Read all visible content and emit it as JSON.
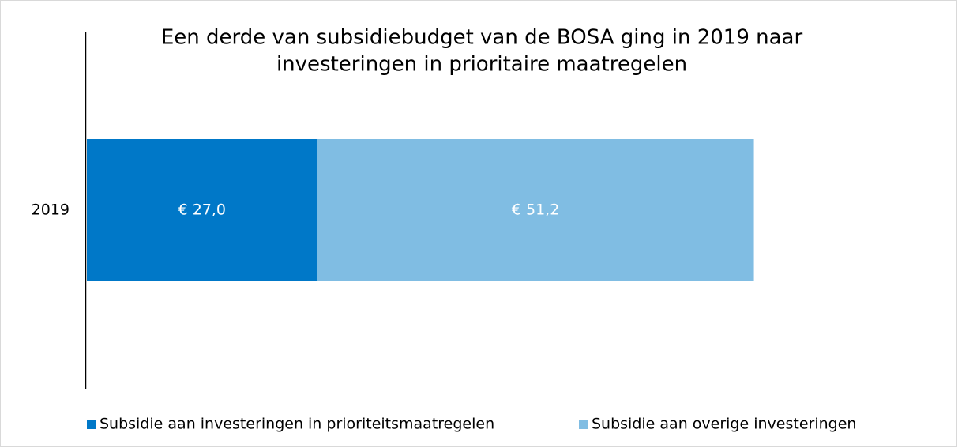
{
  "chart_data": {
    "type": "bar",
    "orientation": "horizontal",
    "stacked": true,
    "title": [
      "Een derde van subsidiebudget van de BOSA ging in 2019 naar",
      "investeringen in prioritaire maatregelen"
    ],
    "categories": [
      "2019"
    ],
    "series": [
      {
        "name": "Subsidie aan investeringen in prioriteitsmaatregelen",
        "color": "#0078c8",
        "values": [
          27.0
        ],
        "value_labels": [
          "€ 27,0"
        ]
      },
      {
        "name": "Subsidie aan overige investeringen",
        "color": "#80bde3",
        "values": [
          51.2
        ],
        "value_labels": [
          "€ 51,2"
        ]
      }
    ],
    "xlim": [
      0,
      100
    ],
    "legend": "bottom"
  }
}
